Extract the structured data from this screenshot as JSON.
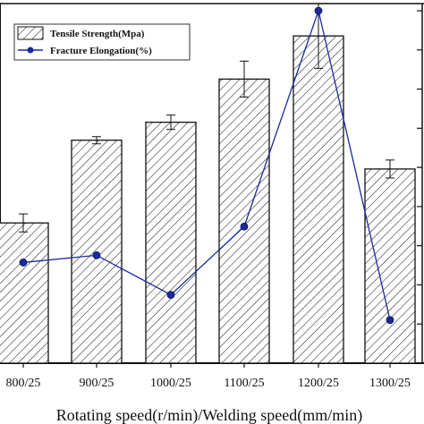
{
  "chart_data": {
    "type": "bar",
    "xlabel": "Rotating speed(r/min)/Welding speed(mm/min)",
    "categories": [
      "800/25",
      "900/25",
      "1000/25",
      "1100/25",
      "1200/25",
      "1300/25"
    ],
    "legend_placement": "top-left",
    "grid": false,
    "bar_ylim": [
      0,
      100
    ],
    "line_ylim": [
      0,
      100
    ],
    "series": [
      {
        "name": "Tensile Strength(Mpa)",
        "kind": "bar",
        "pattern": "diagonal-hatch",
        "values": [
          39,
          62,
          67,
          79,
          91,
          54
        ],
        "errors": [
          2.5,
          1,
          2,
          5,
          9,
          2.5
        ]
      },
      {
        "name": "Fracture Elongation(%)",
        "kind": "line",
        "color": "#1a2a9c",
        "marker": "circle",
        "values": [
          28,
          30,
          19,
          38,
          98,
          12
        ]
      }
    ]
  }
}
